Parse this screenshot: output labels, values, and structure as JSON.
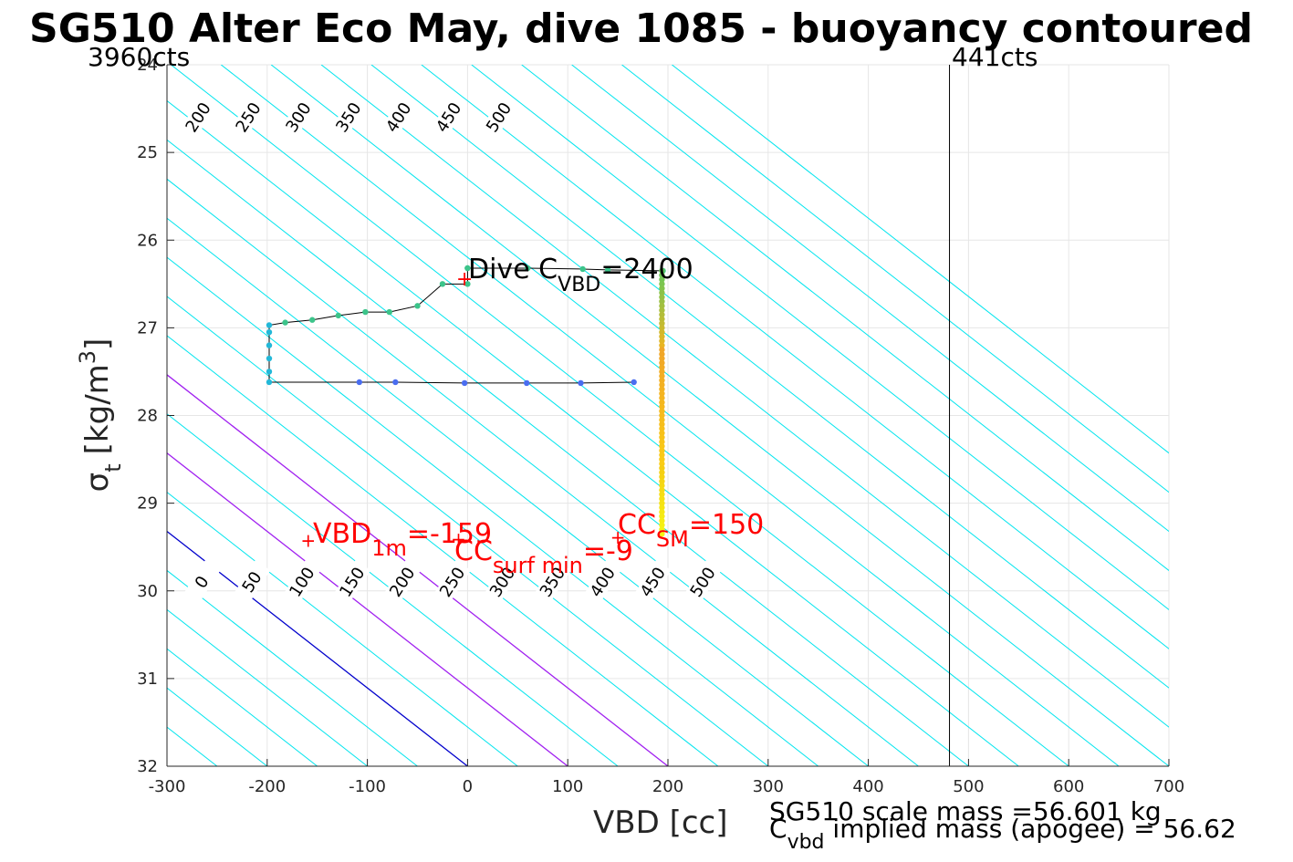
{
  "chart_data": {
    "type": "scatter",
    "title": "SG510 Alter Eco May, dive 1085 - buoyancy contoured",
    "xlabel": "VBD [cc]",
    "ylabel_symbol": "σ",
    "ylabel_sub": "t",
    "ylabel_units": "[kg/m",
    "ylabel_sup": "3",
    "ylabel_close": "]",
    "xlim": [
      -300,
      700
    ],
    "ylim": [
      24,
      32
    ],
    "y_reversed": true,
    "x_ticks": [
      -300,
      -200,
      -100,
      0,
      100,
      200,
      300,
      400,
      500,
      600,
      700
    ],
    "y_ticks": [
      24,
      25,
      26,
      27,
      28,
      29,
      30,
      31,
      32
    ],
    "grid": true,
    "contour_slope_cc_per_sigma": 112,
    "contour_spacing_cc": 50,
    "contours_top": [
      -350,
      -300,
      -250,
      -200,
      -150,
      -100,
      -50,
      0,
      50,
      100,
      150,
      200,
      250,
      300,
      350,
      400,
      450,
      500
    ],
    "contours_bottom": [
      -50,
      0,
      50,
      100,
      150,
      200,
      250,
      300,
      350,
      400,
      450,
      500
    ],
    "contour_offset_cc": [
      -600,
      -550,
      -500,
      -450,
      -400,
      -350,
      -300,
      -250,
      -200,
      -150,
      -100,
      -50,
      0,
      50,
      100,
      150,
      200,
      250,
      300,
      350,
      400,
      450,
      500,
      550,
      600,
      650,
      700,
      750,
      800,
      850,
      900,
      950,
      1000,
      1050,
      1100
    ],
    "special_contours": [
      {
        "offset": 0,
        "color": "#0000cc",
        "label": "0"
      },
      {
        "offset": 100,
        "color": "#a020f0",
        "label": "100"
      },
      {
        "offset": 200,
        "color": "#a020f0",
        "label": "200"
      }
    ],
    "vline_x": 481,
    "vline_left_label": "3960cts",
    "vline_right_label": "441cts",
    "trace": [
      {
        "x": 0,
        "y": 26.32
      },
      {
        "x": 0,
        "y": 26.5
      },
      {
        "x": -25,
        "y": 26.5
      },
      {
        "x": -50,
        "y": 26.75
      },
      {
        "x": -78,
        "y": 26.82
      },
      {
        "x": -102,
        "y": 26.82
      },
      {
        "x": -129,
        "y": 26.86
      },
      {
        "x": -155,
        "y": 26.91
      },
      {
        "x": -182,
        "y": 26.94
      },
      {
        "x": -198,
        "y": 26.97
      },
      {
        "x": -198,
        "y": 27.05
      },
      {
        "x": -198,
        "y": 27.2
      },
      {
        "x": -198,
        "y": 27.35
      },
      {
        "x": -198,
        "y": 27.5
      },
      {
        "x": -198,
        "y": 27.62
      },
      {
        "x": -108,
        "y": 27.62
      },
      {
        "x": -72,
        "y": 27.62
      },
      {
        "x": -3,
        "y": 27.63
      },
      {
        "x": 59,
        "y": 27.63
      },
      {
        "x": 113,
        "y": 27.63
      },
      {
        "x": 166,
        "y": 27.62
      }
    ],
    "top_trace": [
      {
        "x": 0,
        "y": 26.32
      },
      {
        "x": 60,
        "y": 26.32
      },
      {
        "x": 115,
        "y": 26.33
      },
      {
        "x": 140,
        "y": 26.34
      },
      {
        "x": 195,
        "y": 26.35
      }
    ],
    "vertical_column": {
      "x": 194,
      "y_start": 26.35,
      "y_end": 29.35
    },
    "annotations": {
      "dive_c_main": "Dive C",
      "dive_c_sub": "VBD",
      "dive_c_value": "=2400",
      "vbd1m_main": "VBD",
      "vbd1m_sub": "1m",
      "vbd1m_value": "=-159",
      "ccsurf_main": "CC",
      "ccsurf_sub": "surf min",
      "ccsurf_value": "=-9",
      "ccsm_main": "CC",
      "ccsm_sub": "SM",
      "ccsm_value": "=150",
      "scale_mass": "SG510 scale mass =56.601 kg",
      "cvbd_main": "C",
      "cvbd_sub": "vbd",
      "cvbd_text": " implied mass (apogee) = 56.62"
    },
    "colors": {
      "contour": "#00e5ee",
      "zero_contour": "#0000cc",
      "mid_contour": "#a020f0",
      "grid": "#e6e6e6",
      "annotation": "#ff0000",
      "trace_green": "#3cc48a",
      "trace_cyan": "#22b8d8",
      "trace_blue": "#4a6df0"
    }
  }
}
